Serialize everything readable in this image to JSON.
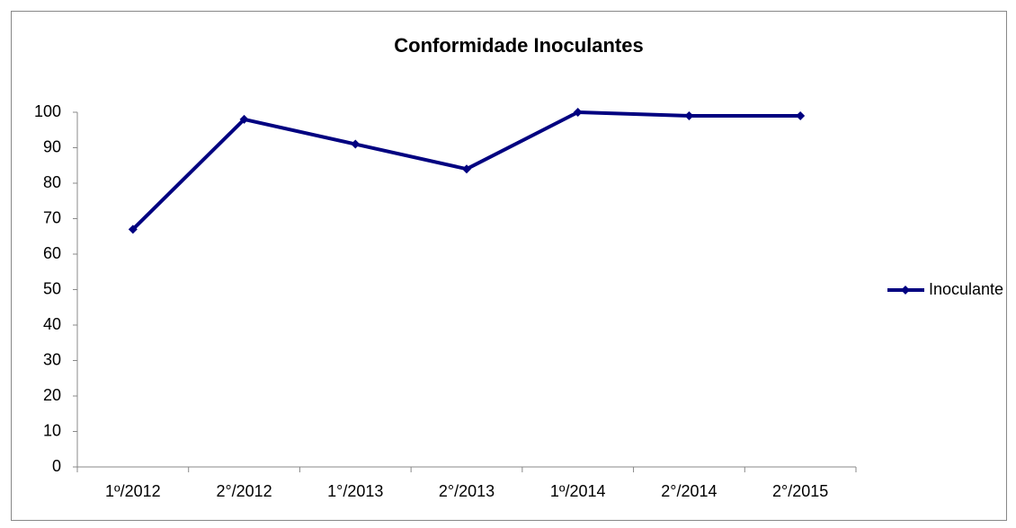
{
  "chart_data": {
    "type": "line",
    "title": "Conformidade Inoculantes",
    "categories": [
      "1º/2012",
      "2°/2012",
      "1°/2013",
      "2°/2013",
      "1º/2014",
      "2°/2014",
      "2°/2015"
    ],
    "series": [
      {
        "name": "Inoculante",
        "color": "#000080",
        "values": [
          67,
          98,
          91,
          84,
          100,
          99,
          99
        ]
      }
    ],
    "ylim": [
      0,
      100
    ],
    "yticks": [
      0,
      10,
      20,
      30,
      40,
      50,
      60,
      70,
      80,
      90,
      100
    ],
    "grid": false,
    "legend": "right"
  }
}
